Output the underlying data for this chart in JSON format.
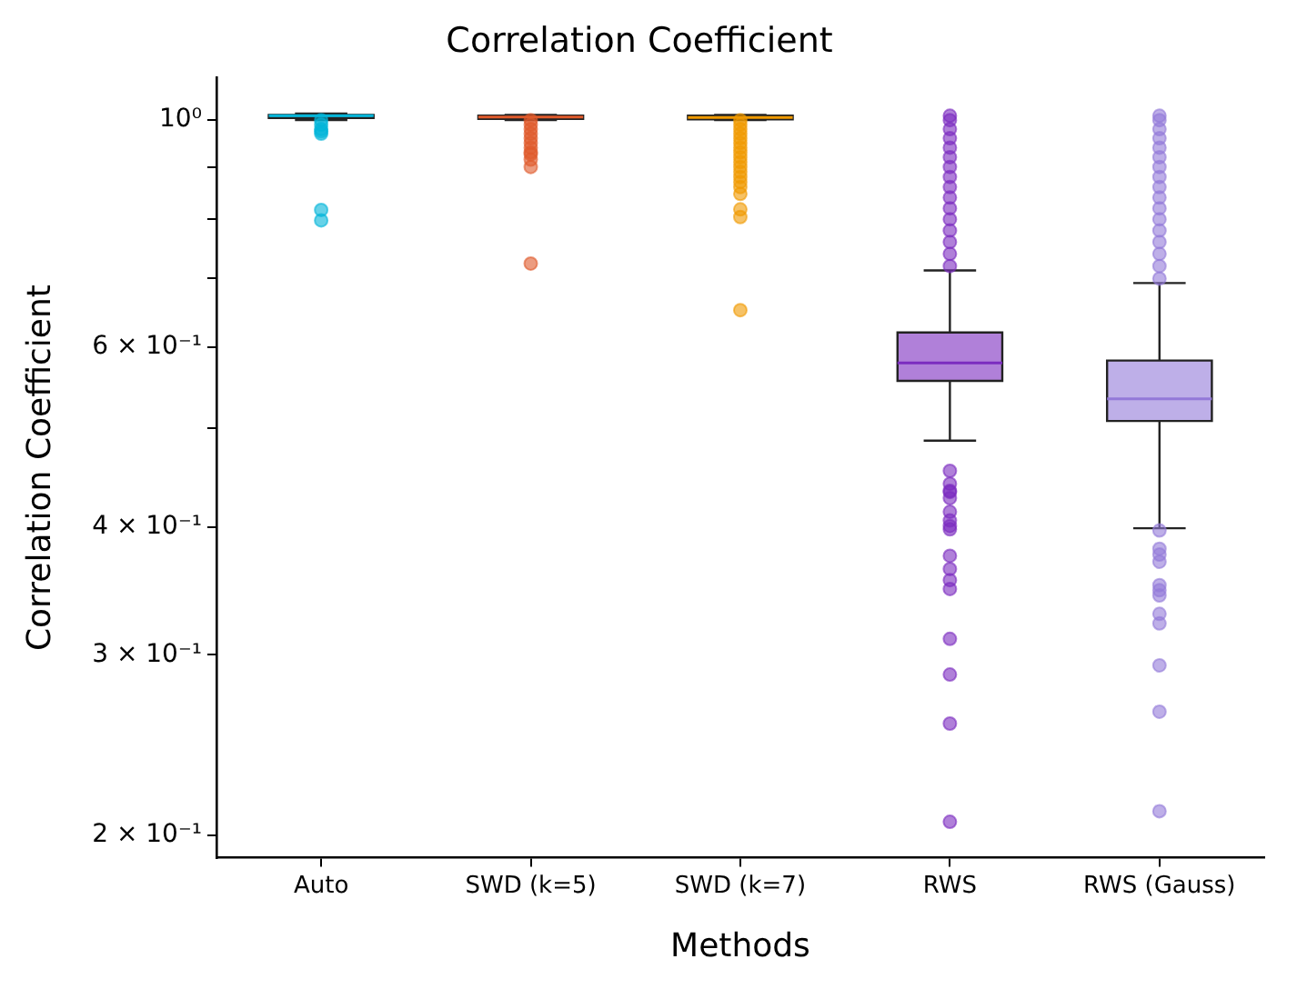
{
  "chart_data": {
    "type": "box",
    "title": "Correlation Coefficient",
    "xlabel": "Methods",
    "ylabel": "Correlation Coefficient",
    "categories": [
      "Auto",
      "SWD (k=5)",
      "SWD (k=7)",
      "RWS",
      "RWS (Gauss)"
    ],
    "colors": [
      "#00b4d8",
      "#e05a2b",
      "#f09a00",
      "#7b2cbf",
      "#9379d8"
    ],
    "log": "y",
    "grid": false,
    "legend": false,
    "ylim": [
      0.19,
      1.1
    ],
    "yticks": [
      {
        "value": 0.2,
        "label": "2 × 10⁻¹"
      },
      {
        "value": 0.3,
        "label": "3 × 10⁻¹"
      },
      {
        "value": 0.4,
        "label": "4 × 10⁻¹"
      },
      {
        "value": 0.5,
        "label": null
      },
      {
        "value": 0.6,
        "label": "6 × 10⁻¹"
      },
      {
        "value": 0.7,
        "label": null
      },
      {
        "value": 0.8,
        "label": null
      },
      {
        "value": 0.9,
        "label": null
      },
      {
        "value": 1,
        "label": "10⁰"
      }
    ],
    "boxes": [
      {
        "low": 1.0,
        "q1": 1.005,
        "median": 1.01,
        "q3": 1.012,
        "high": 1.015,
        "outliers": [
          1.0,
          0.99,
          0.98,
          0.975,
          0.97,
          0.817,
          0.798
        ]
      },
      {
        "low": 1.0,
        "q1": 1.003,
        "median": 1.007,
        "q3": 1.01,
        "high": 1.012,
        "outliers": [
          1.0,
          0.99,
          0.98,
          0.97,
          0.96,
          0.95,
          0.94,
          0.93,
          0.926,
          0.915,
          0.9,
          0.724
        ]
      },
      {
        "low": 1.0,
        "q1": 1.002,
        "median": 1.006,
        "q3": 1.01,
        "high": 1.012,
        "outliers": [
          1.0,
          0.99,
          0.98,
          0.97,
          0.96,
          0.95,
          0.94,
          0.93,
          0.92,
          0.91,
          0.9,
          0.89,
          0.88,
          0.87,
          0.86,
          0.847,
          0.818,
          0.804,
          0.652
        ]
      },
      {
        "low": 0.486,
        "q1": 0.556,
        "median": 0.579,
        "q3": 0.62,
        "high": 0.713,
        "outliers": [
          1.01,
          1.0,
          0.98,
          0.96,
          0.94,
          0.92,
          0.9,
          0.88,
          0.86,
          0.84,
          0.82,
          0.8,
          0.78,
          0.76,
          0.74,
          0.72,
          0.454,
          0.441,
          0.434,
          0.433,
          0.427,
          0.414,
          0.406,
          0.401,
          0.398,
          0.375,
          0.364,
          0.355,
          0.348,
          0.311,
          0.287,
          0.257,
          0.206
        ]
      },
      {
        "low": 0.399,
        "q1": 0.508,
        "median": 0.534,
        "q3": 0.582,
        "high": 0.693,
        "outliers": [
          1.01,
          1.0,
          0.98,
          0.96,
          0.94,
          0.92,
          0.9,
          0.88,
          0.86,
          0.84,
          0.82,
          0.8,
          0.78,
          0.76,
          0.74,
          0.72,
          0.7,
          0.397,
          0.381,
          0.376,
          0.37,
          0.351,
          0.347,
          0.343,
          0.329,
          0.322,
          0.293,
          0.264,
          0.211
        ]
      }
    ]
  }
}
